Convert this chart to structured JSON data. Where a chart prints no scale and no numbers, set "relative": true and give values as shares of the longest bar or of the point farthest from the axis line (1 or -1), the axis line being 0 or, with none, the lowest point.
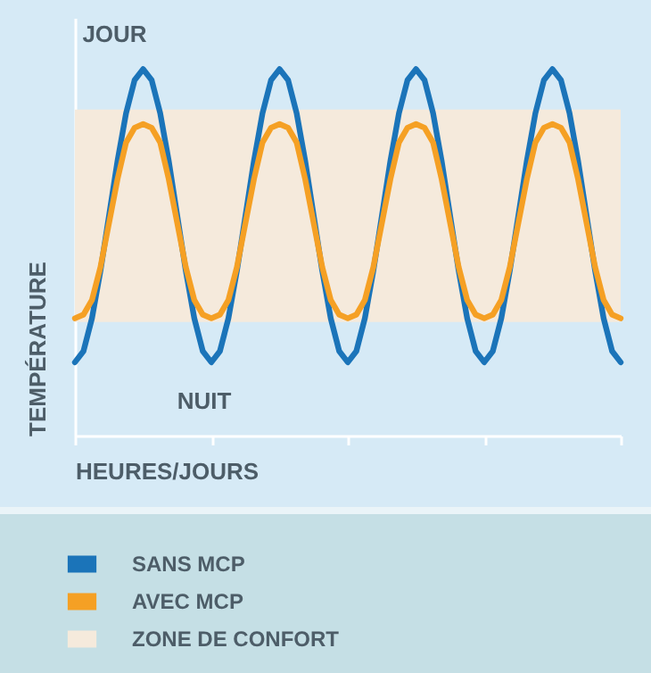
{
  "chart_data": {
    "type": "line",
    "relative": true,
    "xlabel": "HEURES/JOURS",
    "ylabel": "TEMPÉRATURE",
    "categories": [
      null,
      null,
      null,
      null,
      null,
      null,
      null,
      null,
      null,
      null,
      null,
      null,
      null,
      null,
      null,
      null,
      null,
      null,
      null,
      null,
      null,
      null,
      null,
      null,
      null,
      null,
      null,
      null,
      null,
      null,
      null,
      null,
      null,
      null,
      null,
      null,
      null,
      null,
      null,
      null,
      null,
      null,
      null,
      null,
      null,
      null,
      null,
      null,
      null,
      null,
      null,
      null,
      null,
      null,
      null,
      null,
      null,
      null,
      null,
      null,
      null,
      null,
      null,
      null,
      null
    ],
    "series": [
      {
        "name": "SANS MCP",
        "color": "#1b74b9",
        "values": [
          0.2,
          0.23,
          0.32,
          0.45,
          0.6,
          0.75,
          0.88,
          0.97,
          1,
          0.97,
          0.88,
          0.75,
          0.6,
          0.45,
          0.32,
          0.23,
          0.2,
          0.23,
          0.32,
          0.45,
          0.6,
          0.75,
          0.88,
          0.97,
          1,
          0.97,
          0.88,
          0.75,
          0.6,
          0.45,
          0.32,
          0.23,
          0.2,
          0.23,
          0.32,
          0.45,
          0.6,
          0.75,
          0.88,
          0.97,
          1,
          0.97,
          0.88,
          0.75,
          0.6,
          0.45,
          0.32,
          0.23,
          0.2,
          0.23,
          0.32,
          0.45,
          0.6,
          0.75,
          0.88,
          0.97,
          1,
          0.97,
          0.88,
          0.75,
          0.6,
          0.45,
          0.32,
          0.23,
          0.2
        ]
      },
      {
        "name": "AVEC MCP",
        "color": "#f5a024",
        "values": [
          0.32,
          0.33,
          0.37,
          0.46,
          0.58,
          0.7,
          0.8,
          0.84,
          0.85,
          0.84,
          0.8,
          0.7,
          0.58,
          0.46,
          0.37,
          0.33,
          0.32,
          0.33,
          0.37,
          0.46,
          0.58,
          0.7,
          0.8,
          0.84,
          0.85,
          0.84,
          0.8,
          0.7,
          0.58,
          0.46,
          0.37,
          0.33,
          0.32,
          0.33,
          0.37,
          0.46,
          0.58,
          0.7,
          0.8,
          0.84,
          0.85,
          0.84,
          0.8,
          0.7,
          0.58,
          0.46,
          0.37,
          0.33,
          0.32,
          0.33,
          0.37,
          0.46,
          0.58,
          0.7,
          0.8,
          0.84,
          0.85,
          0.84,
          0.8,
          0.7,
          0.58,
          0.46,
          0.37,
          0.33,
          0.32
        ]
      }
    ],
    "bands": [
      {
        "axis": "y",
        "from": 0.31,
        "to": 0.89,
        "label": "ZONE DE CONFORT",
        "color": "#f5eadc"
      }
    ],
    "annotations": [
      "JOUR",
      "NUIT"
    ],
    "legend": "bottom",
    "line_style": "solid"
  }
}
